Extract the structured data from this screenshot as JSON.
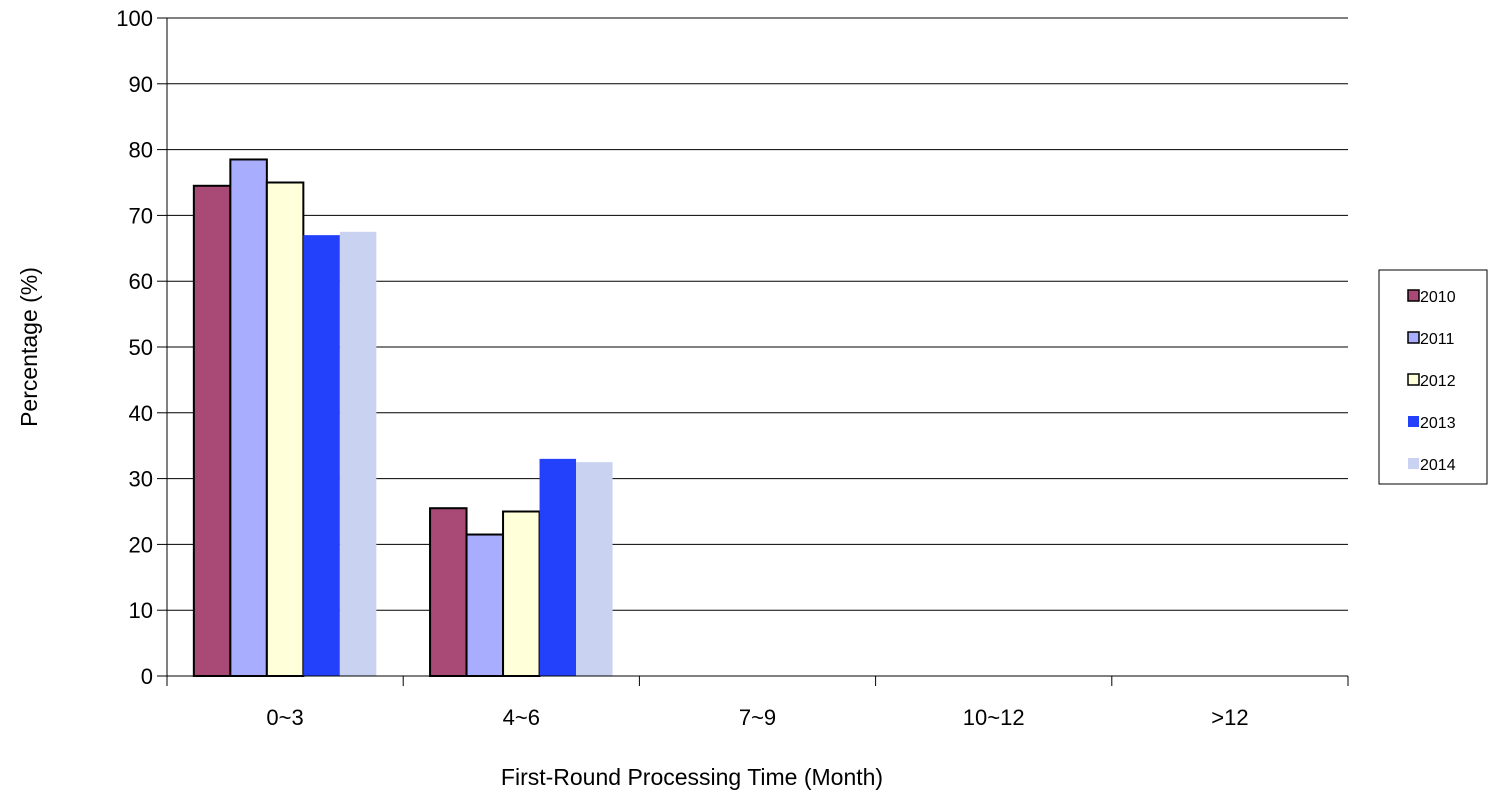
{
  "chart_data": {
    "type": "bar",
    "title": "",
    "xlabel": "First-Round Processing Time (Month)",
    "ylabel": "Percentage (%)",
    "ylim": [
      0,
      100
    ],
    "yticks": [
      0,
      10,
      20,
      30,
      40,
      50,
      60,
      70,
      80,
      90,
      100
    ],
    "grid": true,
    "legend_position": "right",
    "categories": [
      "0~3",
      "4~6",
      "7~9",
      "10~12",
      ">12"
    ],
    "series": [
      {
        "name": "2010",
        "color": "#a84a75",
        "values": [
          74.5,
          25.5,
          0,
          0,
          0
        ]
      },
      {
        "name": "2011",
        "color": "#a9adfd",
        "values": [
          78.5,
          21.5,
          0,
          0,
          0
        ]
      },
      {
        "name": "2012",
        "color": "#ffffd9",
        "values": [
          75.0,
          25.0,
          0,
          0,
          0
        ]
      },
      {
        "name": "2013",
        "color": "#2340fb",
        "values": [
          67.0,
          33.0,
          0,
          0,
          0
        ]
      },
      {
        "name": "2014",
        "color": "#c9d3f1",
        "values": [
          67.5,
          32.5,
          0,
          0,
          0
        ]
      }
    ]
  }
}
